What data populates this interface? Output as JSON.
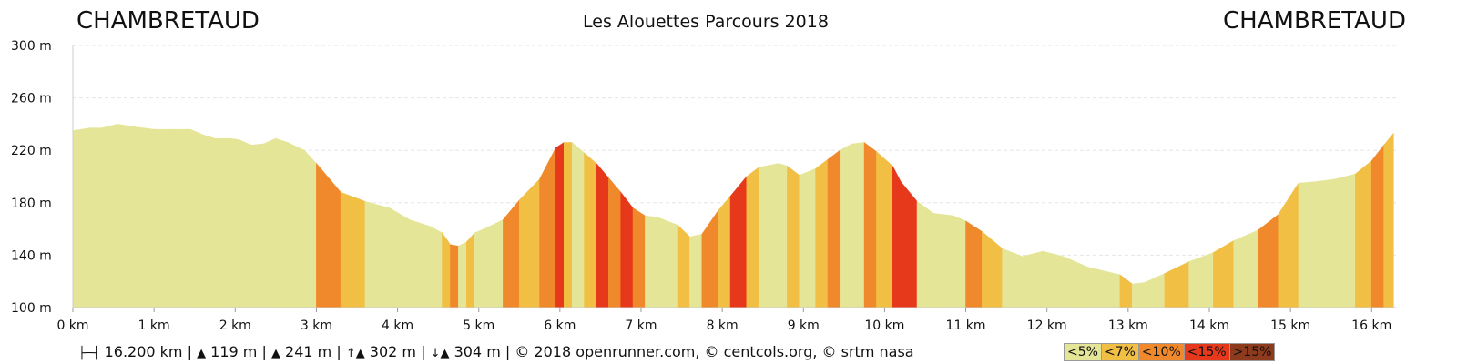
{
  "header": {
    "start_place": "CHAMBRETAUD",
    "end_place": "CHAMBRETAUD",
    "title": "Les Alouettes Parcours 2018"
  },
  "stats": {
    "distance": "16.200 km",
    "min_alt": "119 m",
    "max_alt": "241 m",
    "ascent": "302 m",
    "descent": "304 m",
    "credits": "© 2018 openrunner.com, © centcols.org, © srtm nasa"
  },
  "colors": {
    "lt5": "#e5e597",
    "lt7": "#f2bf45",
    "lt10": "#f0892b",
    "lt15": "#e6391c",
    "gt15": "#8e3a1c"
  },
  "legend": [
    "<5%",
    "<7%",
    "<10%",
    "<15%",
    ">15%"
  ],
  "chart_data": {
    "type": "area",
    "xlabel": "",
    "ylabel": "",
    "xlim": [
      0,
      16.3
    ],
    "ylim": [
      100,
      300
    ],
    "y_ticks": [
      "100 m",
      "140 m",
      "180 m",
      "220 m",
      "260 m",
      "300 m"
    ],
    "x_ticks": [
      "0 km",
      "1 km",
      "2 km",
      "3 km",
      "4 km",
      "5 km",
      "6 km",
      "7 km",
      "8 km",
      "9 km",
      "10 km",
      "11 km",
      "12 km",
      "13 km",
      "14 km",
      "15 km",
      "16 km"
    ],
    "grid": true,
    "x": [
      0,
      0.2,
      0.35,
      0.55,
      0.75,
      1.0,
      1.2,
      1.45,
      1.6,
      1.75,
      1.95,
      2.05,
      2.2,
      2.35,
      2.5,
      2.65,
      2.85,
      3.0,
      3.3,
      3.6,
      3.9,
      4.15,
      4.4,
      4.55,
      4.65,
      4.75,
      4.85,
      4.95,
      5.1,
      5.3,
      5.5,
      5.75,
      5.95,
      6.05,
      6.15,
      6.3,
      6.45,
      6.6,
      6.75,
      6.9,
      7.05,
      7.2,
      7.45,
      7.6,
      7.75,
      7.95,
      8.1,
      8.3,
      8.45,
      8.7,
      8.8,
      8.95,
      9.15,
      9.3,
      9.45,
      9.6,
      9.75,
      9.9,
      10.1,
      10.2,
      10.4,
      10.6,
      10.85,
      11.0,
      11.2,
      11.45,
      11.7,
      11.95,
      12.2,
      12.5,
      12.9,
      13.05,
      13.2,
      13.45,
      13.75,
      14.05,
      14.3,
      14.6,
      14.85,
      15.1,
      15.3,
      15.55,
      15.8,
      16.0,
      16.15,
      16.27
    ],
    "y": [
      235,
      237,
      237,
      240,
      238,
      236,
      236,
      236,
      232,
      229,
      229,
      228,
      224,
      225,
      229,
      226,
      220,
      210,
      188,
      181,
      176,
      167,
      162,
      157,
      148,
      147,
      150,
      157,
      161,
      167,
      182,
      198,
      222,
      226,
      226,
      218,
      210,
      199,
      188,
      176,
      170,
      169,
      163,
      154,
      156,
      174,
      185,
      200,
      207,
      210,
      208,
      201,
      206,
      213,
      220,
      225,
      226,
      219,
      208,
      196,
      181,
      172,
      170,
      166,
      158,
      145,
      139,
      143,
      139,
      131,
      125,
      118,
      119,
      126,
      135,
      142,
      151,
      159,
      171,
      195,
      196,
      198,
      202,
      212,
      224,
      233
    ],
    "gradient_classes": [
      "lt5",
      "lt5",
      "lt5",
      "lt5",
      "lt5",
      "lt5",
      "lt5",
      "lt5",
      "lt5",
      "lt5",
      "lt5",
      "lt5",
      "lt5",
      "lt5",
      "lt5",
      "lt5",
      "lt5",
      "lt10",
      "lt7",
      "lt5",
      "lt5",
      "lt5",
      "lt5",
      "lt7",
      "lt10",
      "lt5",
      "lt7",
      "lt5",
      "lt5",
      "lt10",
      "lt7",
      "lt10",
      "lt15",
      "lt7",
      "lt5",
      "lt7",
      "lt15",
      "lt10",
      "lt15",
      "lt10",
      "lt5",
      "lt5",
      "lt7",
      "lt5",
      "lt10",
      "lt7",
      "lt15",
      "lt7",
      "lt5",
      "lt5",
      "lt7",
      "lt5",
      "lt7",
      "lt10",
      "lt5",
      "lt5",
      "lt10",
      "lt7",
      "lt15",
      "lt15",
      "lt5",
      "lt5",
      "lt5",
      "lt10",
      "lt7",
      "lt5",
      "lt5",
      "lt5",
      "lt5",
      "lt5",
      "lt7",
      "lt5",
      "lt5",
      "lt7",
      "lt5",
      "lt7",
      "lt5",
      "lt10",
      "lt7",
      "lt5",
      "lt5",
      "lt5",
      "lt7",
      "lt10",
      "lt7"
    ]
  }
}
